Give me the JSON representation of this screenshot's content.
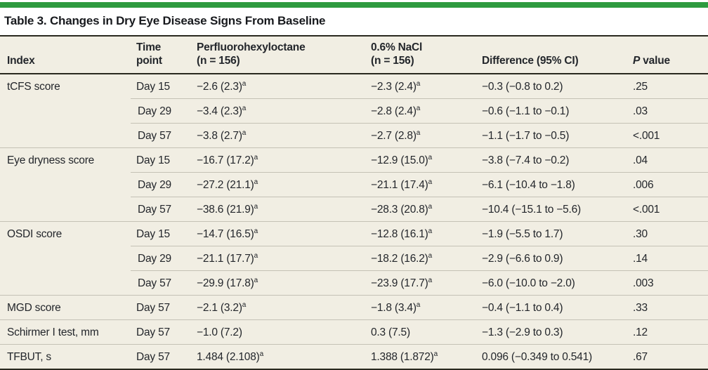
{
  "title": "Table 3. Changes in Dry Eye Disease Signs From Baseline",
  "accent_color": "#2e9b3f",
  "columns": {
    "index": "Index",
    "time_line1": "Time",
    "time_line2": "point",
    "pfho_line1": "Perfluorohexyloctane",
    "pfho_line2": "(n = 156)",
    "nacl_line1": "0.6% NaCl",
    "nacl_line2": "(n = 156)",
    "difference": "Difference (95% CI)",
    "p_italic": "P",
    "p_rest": " value"
  },
  "rows": [
    {
      "index": "tCFS score",
      "time": "Day 15",
      "pfho": "−2.6 (2.3)",
      "pfho_note": "a",
      "nacl": "−2.3 (2.4)",
      "nacl_note": "a",
      "diff": "−0.3 (−0.8 to 0.2)",
      "p": ".25"
    },
    {
      "time": "Day 29",
      "pfho": "−3.4 (2.3)",
      "pfho_note": "a",
      "nacl": "−2.8 (2.4)",
      "nacl_note": "a",
      "diff": "−0.6 (−1.1 to −0.1)",
      "p": ".03"
    },
    {
      "time": "Day 57",
      "pfho": "−3.8 (2.7)",
      "pfho_note": "a",
      "nacl": "−2.7 (2.8)",
      "nacl_note": "a",
      "diff": "−1.1 (−1.7 to −0.5)",
      "p": "<.001"
    },
    {
      "index": "Eye dryness score",
      "time": "Day 15",
      "pfho": "−16.7 (17.2)",
      "pfho_note": "a",
      "nacl": "−12.9 (15.0)",
      "nacl_note": "a",
      "diff": "−3.8 (−7.4 to −0.2)",
      "p": ".04"
    },
    {
      "time": "Day 29",
      "pfho": "−27.2 (21.1)",
      "pfho_note": "a",
      "nacl": "−21.1 (17.4)",
      "nacl_note": "a",
      "diff": "−6.1 (−10.4 to −1.8)",
      "p": ".006"
    },
    {
      "time": "Day 57",
      "pfho": "−38.6 (21.9)",
      "pfho_note": "a",
      "nacl": "−28.3 (20.8)",
      "nacl_note": "a",
      "diff": "−10.4 (−15.1 to −5.6)",
      "p": "<.001"
    },
    {
      "index": "OSDI score",
      "time": "Day 15",
      "pfho": "−14.7 (16.5)",
      "pfho_note": "a",
      "nacl": "−12.8 (16.1)",
      "nacl_note": "a",
      "diff": "−1.9 (−5.5 to 1.7)",
      "p": ".30"
    },
    {
      "time": "Day 29",
      "pfho": "−21.1 (17.7)",
      "pfho_note": "a",
      "nacl": "−18.2 (16.2)",
      "nacl_note": "a",
      "diff": "−2.9 (−6.6 to 0.9)",
      "p": ".14"
    },
    {
      "time": "Day 57",
      "pfho": "−29.9 (17.8)",
      "pfho_note": "a",
      "nacl": "−23.9 (17.7)",
      "nacl_note": "a",
      "diff": "−6.0 (−10.0 to −2.0)",
      "p": ".003"
    },
    {
      "index": "MGD score",
      "time": "Day 57",
      "pfho": "−2.1 (3.2)",
      "pfho_note": "a",
      "nacl": "−1.8 (3.4)",
      "nacl_note": "a",
      "diff": "−0.4 (−1.1 to 0.4)",
      "p": ".33"
    },
    {
      "index": "Schirmer I test, mm",
      "time": "Day 57",
      "pfho": "−1.0 (7.2)",
      "nacl": "0.3 (7.5)",
      "diff": "−1.3 (−2.9 to 0.3)",
      "p": ".12"
    },
    {
      "index": "TFBUT, s",
      "time": "Day 57",
      "pfho": "1.484 (2.108)",
      "pfho_note": "a",
      "nacl": "1.388 (1.872)",
      "nacl_note": "a",
      "diff": "0.096 (−0.349 to 0.541)",
      "p": ".67"
    }
  ]
}
